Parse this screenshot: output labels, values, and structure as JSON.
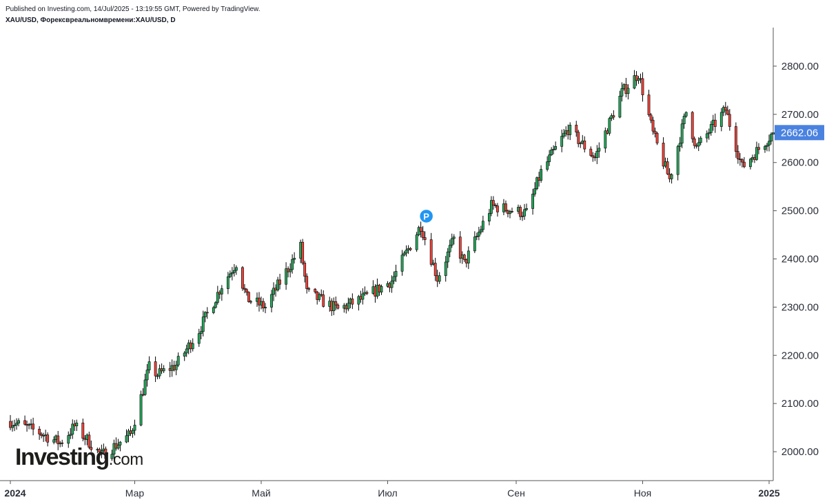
{
  "header": {
    "published": "Published on Investing.com, 14/Jul/2025 - 13:19:55 GMT, Powered by TradingView.",
    "symbol_line": "XAU/USD, Форексвреальномвремени:XAU/USD, D"
  },
  "logo": {
    "main": "Investing",
    "suffix": ".com"
  },
  "colors": {
    "up": "#26a65b",
    "down": "#e8453c",
    "wick": "#000000",
    "price_label_bg": "#4a82e0",
    "marker": "#2196f3"
  },
  "chart_data": {
    "type": "candlestick",
    "title": "XAU/USD, Форексвреальномвремени:XAU/USD, D",
    "y_ticks": [
      "2000.00",
      "2100.00",
      "2200.00",
      "2300.00",
      "2400.00",
      "2500.00",
      "2600.00",
      "2700.00",
      "2800.00"
    ],
    "x_ticks": [
      {
        "label": "2024",
        "date": "2024-01-01",
        "bold": true
      },
      {
        "label": "Мар",
        "date": "2024-03-01",
        "bold": false
      },
      {
        "label": "Май",
        "date": "2024-05-01",
        "bold": false
      },
      {
        "label": "Июл",
        "date": "2024-07-01",
        "bold": false
      },
      {
        "label": "Сен",
        "date": "2024-09-01",
        "bold": false
      },
      {
        "label": "Ноя",
        "date": "2024-11-01",
        "bold": false
      },
      {
        "label": "2025",
        "date": "2025-01-01",
        "bold": true
      }
    ],
    "ylim": [
      1940,
      2880
    ],
    "xlim": [
      "2023-12-29",
      "2025-01-03"
    ],
    "last_price": "2662.06",
    "marker": {
      "label": "P",
      "date": "2024-07-17",
      "price": 2483
    },
    "close_path": [
      [
        "2024-01-01",
        2063
      ],
      [
        "2024-01-15",
        2040
      ],
      [
        "2024-01-25",
        2018
      ],
      [
        "2024-02-01",
        2053
      ],
      [
        "2024-02-14",
        1992
      ],
      [
        "2024-02-28",
        2036
      ],
      [
        "2024-03-08",
        2175
      ],
      [
        "2024-03-12",
        2160
      ],
      [
        "2024-03-21",
        2180
      ],
      [
        "2024-04-01",
        2252
      ],
      [
        "2024-04-12",
        2345
      ],
      [
        "2024-04-19",
        2392
      ],
      [
        "2024-04-24",
        2318
      ],
      [
        "2024-05-03",
        2300
      ],
      [
        "2024-05-20",
        2425
      ],
      [
        "2024-05-23",
        2330
      ],
      [
        "2024-06-07",
        2295
      ],
      [
        "2024-06-20",
        2320
      ],
      [
        "2024-07-03",
        2355
      ],
      [
        "2024-07-17",
        2470
      ],
      [
        "2024-07-25",
        2360
      ],
      [
        "2024-08-02",
        2440
      ],
      [
        "2024-08-07",
        2390
      ],
      [
        "2024-08-20",
        2510
      ],
      [
        "2024-09-06",
        2495
      ],
      [
        "2024-09-13",
        2580
      ],
      [
        "2024-09-26",
        2670
      ],
      [
        "2024-10-09",
        2610
      ],
      [
        "2024-10-22",
        2745
      ],
      [
        "2024-10-30",
        2785
      ],
      [
        "2024-11-06",
        2660
      ],
      [
        "2024-11-14",
        2565
      ],
      [
        "2024-11-22",
        2705
      ],
      [
        "2024-11-27",
        2630
      ],
      [
        "2024-12-11",
        2710
      ],
      [
        "2024-12-19",
        2590
      ],
      [
        "2025-01-03",
        2662
      ]
    ]
  }
}
